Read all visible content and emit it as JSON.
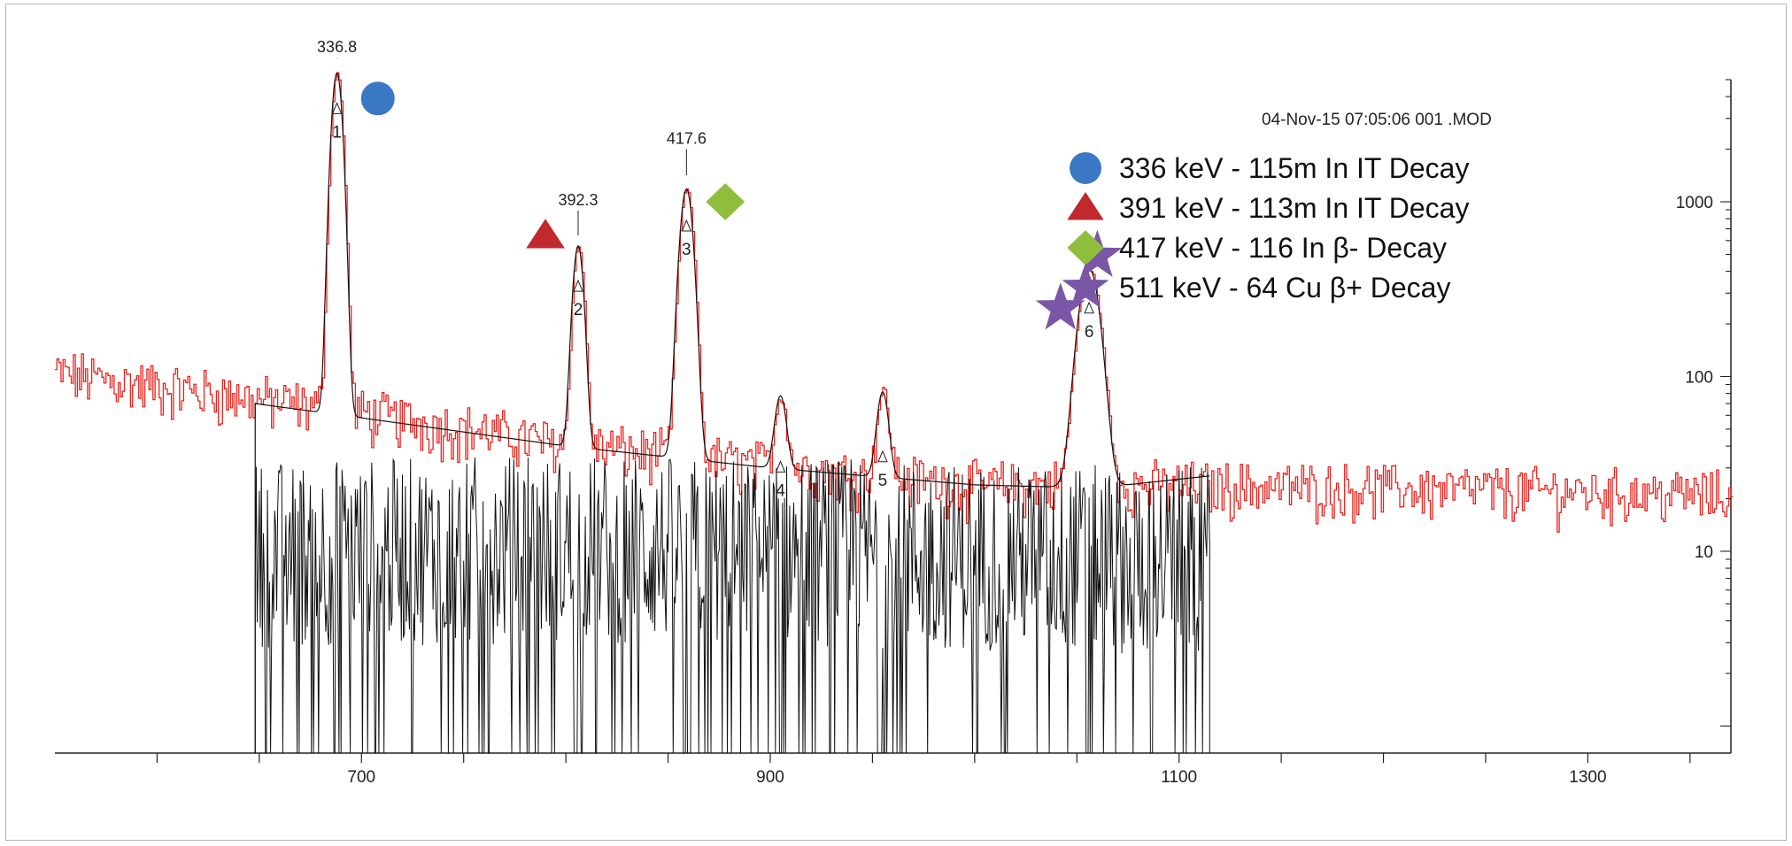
{
  "chart_data": {
    "type": "line",
    "timestamp_text": "04-Nov-15 07:05:06  001 .MOD",
    "x_axis": {
      "ticks": [
        700,
        900,
        1100,
        1300
      ],
      "range": [
        550,
        1370
      ]
    },
    "y_axis": {
      "scale": "log",
      "ticks": [
        10,
        100,
        1000
      ],
      "range": [
        0.7,
        5000
      ],
      "position": "right"
    },
    "series": [
      {
        "role": "spectrum",
        "color": "#e8231e",
        "x_start": 550,
        "x_end": 1370,
        "continuum": [
          [
            550,
            105
          ],
          [
            700,
            62
          ],
          [
            800,
            41
          ],
          [
            900,
            31
          ],
          [
            1000,
            24
          ],
          [
            1100,
            24
          ],
          [
            1200,
            23
          ],
          [
            1300,
            22
          ],
          [
            1370,
            21
          ]
        ],
        "peaks": [
          {
            "x": 688,
            "height": 5400,
            "sigma": 2.3
          },
          {
            "x": 806,
            "height": 520,
            "sigma": 2.3
          },
          {
            "x": 859,
            "height": 1150,
            "sigma": 2.8
          },
          {
            "x": 905,
            "height": 48,
            "sigma": 2.5
          },
          {
            "x": 955,
            "height": 55,
            "sigma": 2.5
          },
          {
            "x": 1056,
            "height": 390,
            "sigma": 4.5
          }
        ]
      },
      {
        "role": "background-fit",
        "color": "#111111",
        "points": [
          [
            648,
            70
          ],
          [
            700,
            58
          ],
          [
            800,
            40
          ],
          [
            900,
            30
          ],
          [
            1000,
            24
          ],
          [
            1060,
            23
          ],
          [
            1115,
            27
          ]
        ]
      },
      {
        "role": "residual",
        "color": "#111111",
        "x_start": 648,
        "x_end": 1115
      }
    ],
    "peak_labels": [
      {
        "x": 688,
        "value_text": "336.8",
        "number": "1",
        "label_y": 4500
      },
      {
        "x": 806,
        "value_text": "392.3",
        "number": "2",
        "label_y": 600
      },
      {
        "x": 859,
        "value_text": "417.6",
        "number": "3",
        "label_y": 1350
      },
      {
        "x": 905,
        "value_text": "",
        "number": "4",
        "label_y": 0
      },
      {
        "x": 955,
        "value_text": "",
        "number": "5",
        "label_y": 0
      },
      {
        "x": 1056,
        "value_text": "",
        "number": "6",
        "label_y": 0
      }
    ],
    "markers": [
      {
        "shape": "circle",
        "color": "#3b78c4",
        "x": 708,
        "y": 3900
      },
      {
        "shape": "triangle",
        "color": "#c0292d",
        "x": 790,
        "y": 640
      },
      {
        "shape": "diamond",
        "color": "#8fbd3c",
        "x": 878,
        "y": 1000
      },
      {
        "shape": "star",
        "color": "#7a56a6",
        "x": 1042,
        "y": 245
      },
      {
        "shape": "star",
        "color": "#7a56a6",
        "x": 1060,
        "y": 490
      }
    ],
    "legend": {
      "placement": "top-right",
      "entries": [
        {
          "shape": "circle",
          "color": "#3b78c4",
          "label": "336 keV - 115m In IT Decay"
        },
        {
          "shape": "triangle",
          "color": "#c0292d",
          "label": "391 keV - 113m In IT Decay"
        },
        {
          "shape": "diamond",
          "color": "#8fbd3c",
          "label": "417 keV - 116 In β- Decay"
        },
        {
          "shape": "star",
          "color": "#7a56a6",
          "label": "511 keV - 64 Cu β+ Decay"
        }
      ]
    }
  }
}
